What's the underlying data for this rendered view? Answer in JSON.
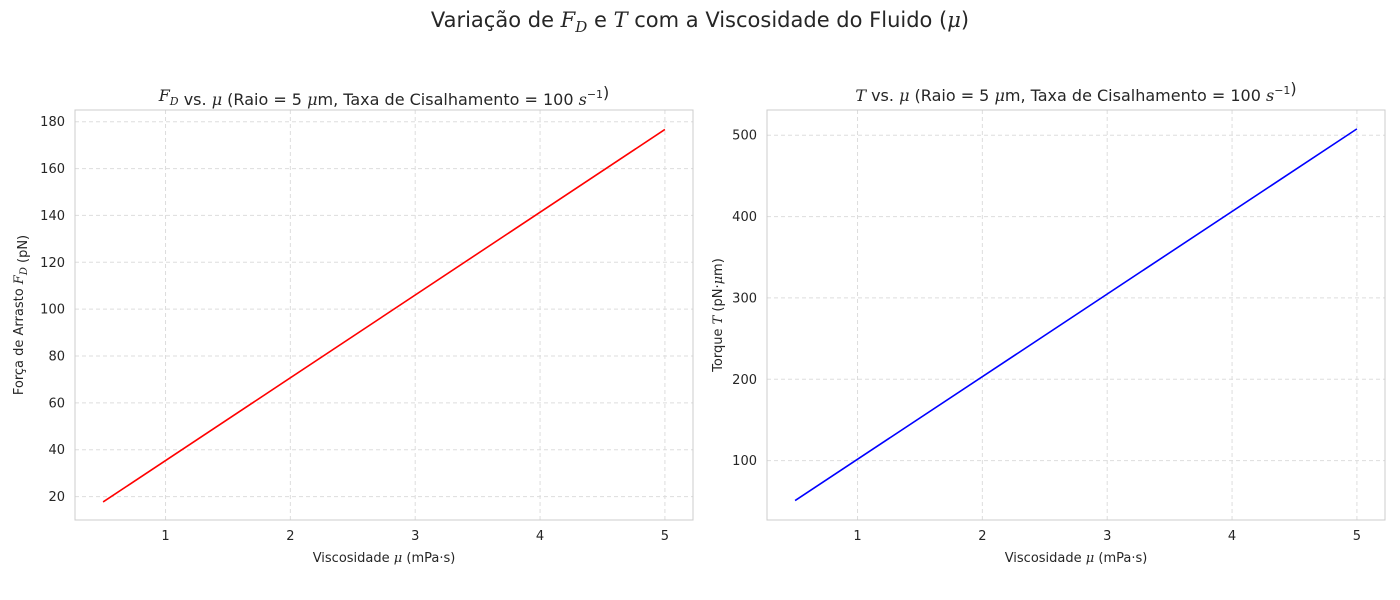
{
  "figure": {
    "suptitle": "Variação de F_D e T com a Viscosidade do Fluido (μ)"
  },
  "chart_data": [
    {
      "type": "line",
      "title": "F_D vs. μ (Raio = 5 μm, Taxa de Cisalhamento = 100 s^-1)",
      "xlabel": "Viscosidade μ (mPa·s)",
      "ylabel": "Força de Arrasto F_D (pN)",
      "xlim": [
        0.275,
        5.225
      ],
      "ylim": [
        10,
        185
      ],
      "xticks": [
        1,
        2,
        3,
        4,
        5
      ],
      "yticks": [
        20,
        40,
        60,
        80,
        100,
        120,
        140,
        160,
        180
      ],
      "grid": true,
      "grid_style": "dashed",
      "series": [
        {
          "color": "#ff0000",
          "x": [
            0.5,
            5.0
          ],
          "y": [
            17.7,
            176.7
          ]
        }
      ]
    },
    {
      "type": "line",
      "title": "T vs. μ (Raio = 5 μm, Taxa de Cisalhamento = 100 s^-1)",
      "xlabel": "Viscosidade μ (mPa·s)",
      "ylabel": "Torque T (pN·μm)",
      "xlim": [
        0.275,
        5.225
      ],
      "ylim": [
        27,
        531
      ],
      "xticks": [
        1,
        2,
        3,
        4,
        5
      ],
      "yticks": [
        100,
        200,
        300,
        400,
        500
      ],
      "grid": true,
      "grid_style": "dashed",
      "series": [
        {
          "color": "#0000ff",
          "x": [
            0.5,
            5.0
          ],
          "y": [
            50.9,
            507.8
          ]
        }
      ]
    }
  ]
}
